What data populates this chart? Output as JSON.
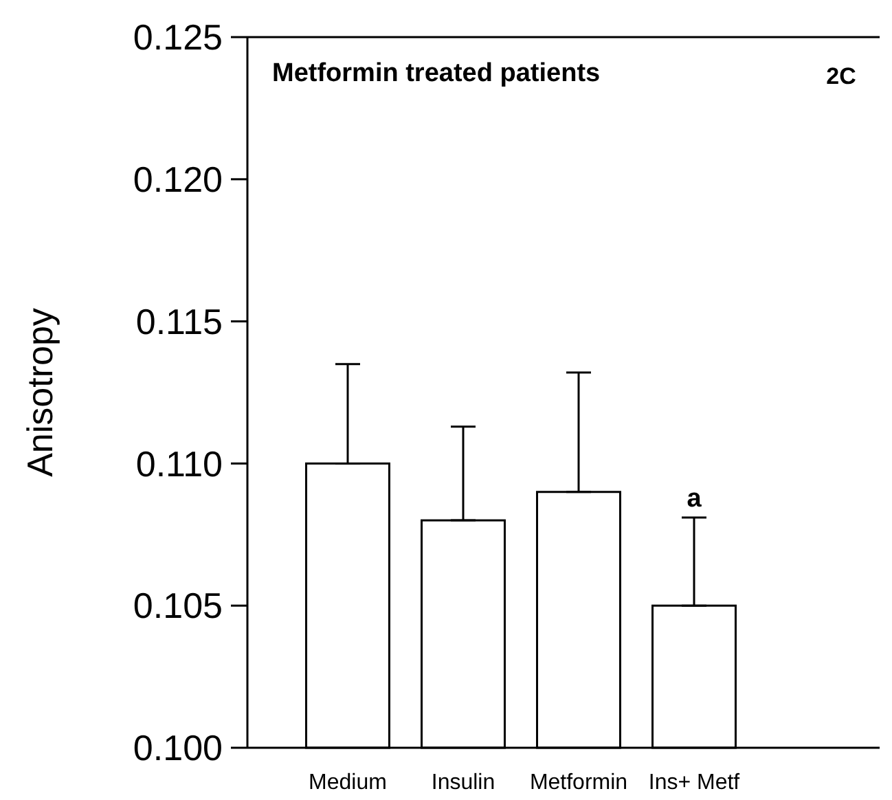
{
  "chart_data": {
    "type": "bar",
    "title": "Metformin treated patients",
    "ylabel": "Anisotropy",
    "categories": [
      "Medium",
      "Insulin",
      "Metformin",
      "Ins+ Metf"
    ],
    "values": [
      0.11,
      0.108,
      0.109,
      0.105
    ],
    "errors": [
      [
        0.11,
        0.1135
      ],
      [
        0.108,
        0.1113
      ],
      [
        0.109,
        0.1132
      ],
      [
        0.105,
        0.1081
      ]
    ],
    "color": "#ffffff",
    "ylim": [
      0.1,
      0.125
    ],
    "yticks": [
      {
        "value": 0.1,
        "label": "0.100"
      },
      {
        "value": 0.105,
        "label": "0.105"
      },
      {
        "value": 0.11,
        "label": "0.110"
      },
      {
        "value": 0.115,
        "label": "0.115"
      },
      {
        "value": 0.12,
        "label": "0.120"
      },
      {
        "value": 0.125,
        "label": "0.125"
      }
    ],
    "annotations": [
      "2C",
      "a"
    ],
    "grid": false
  }
}
